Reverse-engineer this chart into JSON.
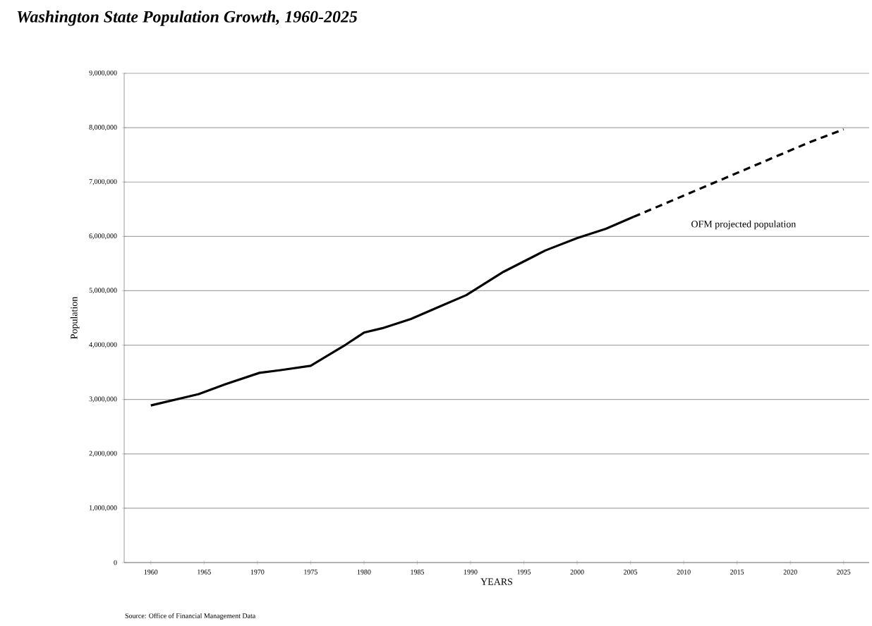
{
  "chart_data": {
    "type": "line",
    "title": "Washington State Population Growth, 1960-2025",
    "xlabel": "YEARS",
    "ylabel": "Population",
    "annotations": [
      "Source:  Office of Financial Management Data"
    ],
    "xlim": [
      1957.5,
      2027.4
    ],
    "xticks": [
      1960,
      1965,
      1970,
      1975,
      1980,
      1985,
      1990,
      1995,
      2000,
      2005,
      2010,
      2015,
      2020,
      2025
    ],
    "ylim": [
      0,
      9000000
    ],
    "yticks": [
      {
        "value": 0,
        "label": "0"
      },
      {
        "value": 1000000,
        "label": "1,000,000"
      },
      {
        "value": 2000000,
        "label": "2,000,000"
      },
      {
        "value": 3000000,
        "label": "3,000,000"
      },
      {
        "value": 4000000,
        "label": "4,000,000"
      },
      {
        "value": 5000000,
        "label": "5,000,000"
      },
      {
        "value": 6000000,
        "label": "6,000,000"
      },
      {
        "value": 7000000,
        "label": "7,000,000"
      },
      {
        "value": 8000000,
        "label": "8,000,000"
      },
      {
        "value": 9000000,
        "label": "9,000,000"
      }
    ],
    "grid": "y",
    "series": [
      {
        "color": "#000000",
        "line_style": "solid",
        "x": [
          1960,
          1964.5,
          1967,
          1970.2,
          1972.2,
          1975,
          1978.3,
          1980,
          1981.7,
          1984.4,
          1987,
          1989.6,
          1993.1,
          1997,
          2000,
          2002.7,
          2005.3
        ],
        "values": [
          2890000,
          3100000,
          3280000,
          3490000,
          3540000,
          3620000,
          4010000,
          4230000,
          4310000,
          4480000,
          4700000,
          4920000,
          5350000,
          5740000,
          5970000,
          6140000,
          6360000
        ]
      },
      {
        "name": "OFM projected population",
        "color": "#000000",
        "line_style": "dashed",
        "x": [
          2005.3,
          2013,
          2021.9,
          2025
        ],
        "values": [
          6360000,
          7000000,
          7740000,
          7970000
        ]
      }
    ]
  }
}
